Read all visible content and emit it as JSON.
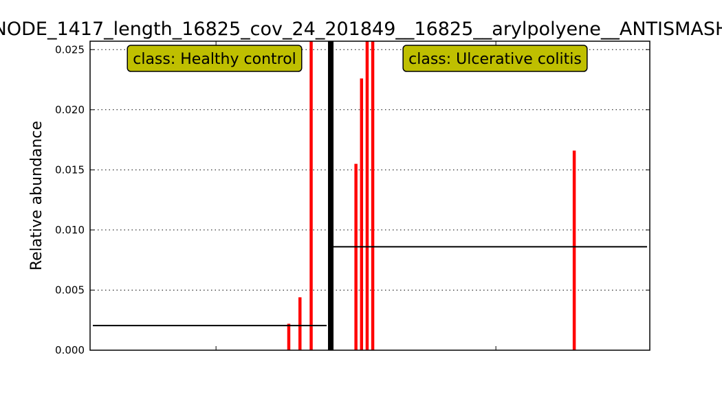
{
  "chart_data": {
    "type": "bar",
    "title": "NODE_1417_length_16825_cov_24_201849__16825__arylpolyene__ANTISMASH",
    "ylabel": "Relative abundance",
    "ylim": [
      0,
      0.0257
    ],
    "yticks": [
      "0.000",
      "0.005",
      "0.010",
      "0.015",
      "0.020",
      "0.025"
    ],
    "grid": "horizontal-dotted",
    "sample_count": 100,
    "bar_color": "#ff0000",
    "mean_line_color": "#000000",
    "divider_color": "#000000",
    "label_box_color": "#bfbf00",
    "classes": [
      {
        "label": "class: Healthy control",
        "start": 0,
        "end": 43,
        "mean": 0.00205,
        "bars": [
          {
            "x": 35,
            "value": 0.0022
          },
          {
            "x": 37,
            "value": 0.0044
          },
          {
            "x": 39,
            "value": 0.0257
          }
        ]
      },
      {
        "label": "class: Ulcerative colitis",
        "start": 43,
        "end": 100,
        "mean": 0.0086,
        "bars": [
          {
            "x": 47,
            "value": 0.0155
          },
          {
            "x": 48,
            "value": 0.0226
          },
          {
            "x": 49,
            "value": 0.0257
          },
          {
            "x": 50,
            "value": 0.0257
          },
          {
            "x": 86,
            "value": 0.0166
          }
        ]
      }
    ]
  }
}
